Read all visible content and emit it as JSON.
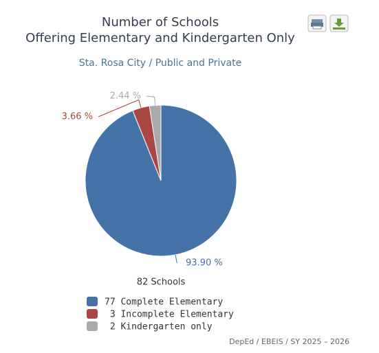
{
  "chart_data": {
    "type": "pie",
    "title": "Number of Schools",
    "title_line2": "Offering Elementary and Kindergarten Only",
    "subtitle": "Sta. Rosa City / Public and Private",
    "annotation": "82 Schools",
    "credits": "DepEd / EBEIS / SY 2025 – 2026",
    "categories": [
      "77 Complete Elementary",
      " 3 Incomplete Elementary",
      " 2 Kindergarten only"
    ],
    "values": [
      93.9,
      3.66,
      2.44
    ],
    "value_labels": [
      "93.90 %",
      "3.66 %",
      "2.44 %"
    ],
    "colors": [
      "#4572a7",
      "#aa4643",
      "#aaaaaa"
    ]
  }
}
